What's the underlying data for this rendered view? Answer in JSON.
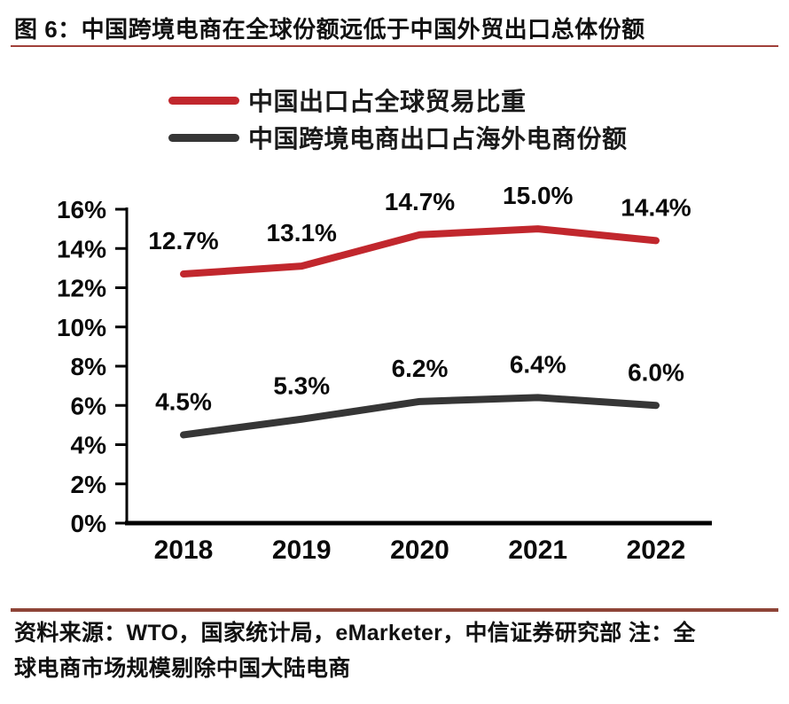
{
  "header": {
    "title": "图 6：中国跨境电商在全球份额远低于中国外贸出口总体份额"
  },
  "legend": [
    {
      "label": "中国出口占全球贸易比重",
      "color": "#c1272d"
    },
    {
      "label": "中国跨境电商出口占海外电商份额",
      "color": "#363636"
    }
  ],
  "chart_data": {
    "type": "line",
    "categories": [
      "2018",
      "2019",
      "2020",
      "2021",
      "2022"
    ],
    "series": [
      {
        "name": "中国出口占全球贸易比重",
        "color": "#c1272d",
        "values": [
          12.7,
          13.1,
          14.7,
          15.0,
          14.4
        ]
      },
      {
        "name": "中国跨境电商出口占海外电商份额",
        "color": "#363636",
        "values": [
          4.5,
          5.3,
          6.2,
          6.4,
          6.0
        ]
      }
    ],
    "title": "",
    "xlabel": "",
    "ylabel": "",
    "ylim": [
      0,
      16
    ],
    "ytick_step": 2,
    "ytick_suffix": "%",
    "data_label_suffix": "%",
    "grid": false,
    "legend_position": "top",
    "axis_color": "#000000"
  },
  "footer": {
    "lines": [
      "资料来源：WTO，国家统计局，eMarketer，中信证券研究部 注：全",
      "球电商市场规模剔除中国大陆电商"
    ]
  }
}
